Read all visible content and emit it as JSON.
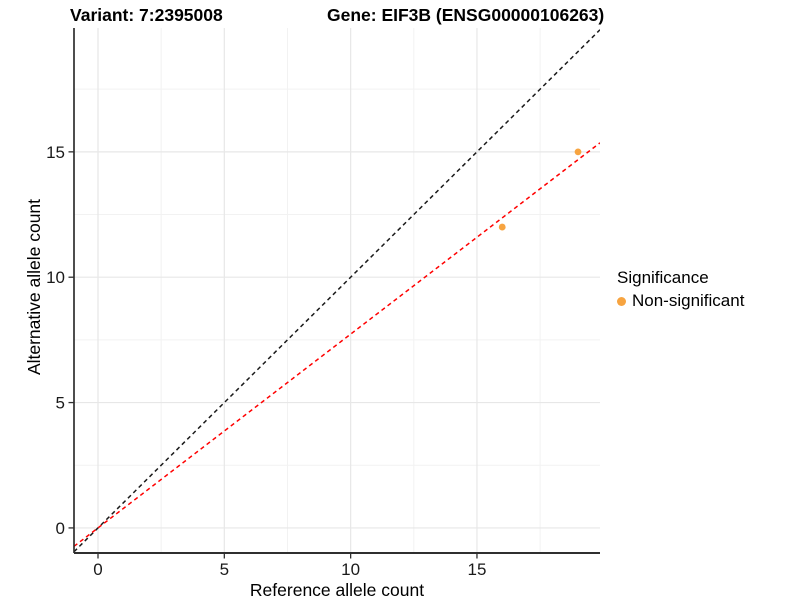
{
  "chart_data": {
    "type": "scatter",
    "titles": {
      "left": "Variant: 7:2395008",
      "right": "Gene: EIF3B (ENSG00000106263)"
    },
    "xlabel": "Reference allele count",
    "ylabel": "Alternative allele count",
    "xlim": [
      -0.95,
      19.87
    ],
    "ylim": [
      -1.0,
      19.94
    ],
    "x_major_ticks": [
      0,
      5,
      10,
      15
    ],
    "y_major_ticks": [
      0,
      5,
      10,
      15
    ],
    "x_minor_ticks": [
      2.5,
      7.5,
      12.5,
      17.5
    ],
    "y_minor_ticks": [
      2.5,
      7.5,
      12.5,
      17.5
    ],
    "grid": "on",
    "points": [
      {
        "x": 16,
        "y": 12,
        "series": "Non-significant"
      },
      {
        "x": 19,
        "y": 15,
        "series": "Non-significant"
      }
    ],
    "lines": [
      {
        "name": "identity-line",
        "slope": 1.0,
        "intercept": 0,
        "color": "#1a1a1a",
        "style": "dashed"
      },
      {
        "name": "fit-line",
        "slope": 0.773,
        "intercept": 0,
        "color": "#ff0000",
        "style": "dashed"
      }
    ],
    "legend": {
      "position": "right",
      "title": "Significance",
      "items": [
        {
          "label": "Non-significant",
          "color": "#F7A440"
        }
      ]
    },
    "colors": {
      "point": "#F7A440",
      "grid_major": "#e7e7e7",
      "grid_minor": "#f2f2f2",
      "axis_line": "#2f2f2f",
      "tick_label": "#1a1a1a"
    }
  }
}
